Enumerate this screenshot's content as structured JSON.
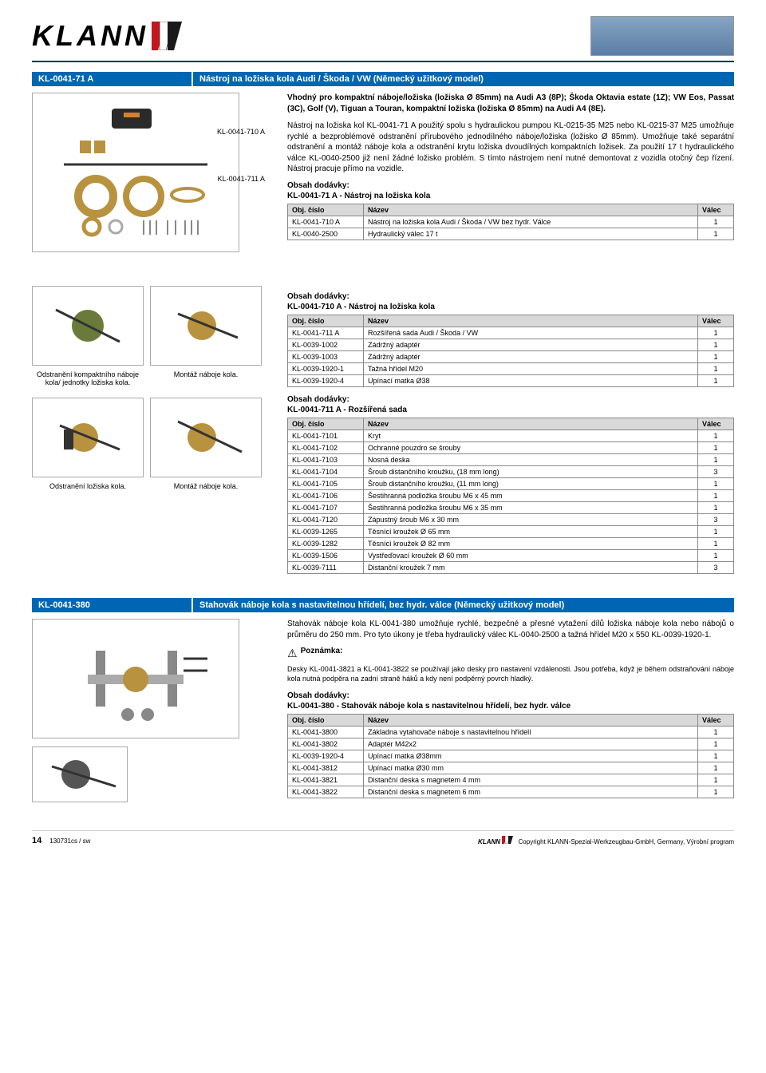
{
  "header": {
    "logo_text": "KLANN",
    "logo_colors": {
      "red": "#c4161c",
      "dark": "#1a1a1a"
    }
  },
  "section1": {
    "code": "KL-0041-71 A",
    "title": "Nástroj na ložiska kola Audi / Škoda / VW  (Německý užitkový model)",
    "ref1": "KL-0041-710 A",
    "ref2": "KL-0041-711 A",
    "intro_bold": "Vhodný pro kompaktní náboje/ložiska (ložiska Ø 85mm) na Audi A3 (8P); Škoda Oktavia estate (1Z); VW Eos, Passat (3C), Golf (V), Tiguan a Touran, kompaktní ložiska (ložiska Ø 85mm) na Audi A4 (8E).",
    "desc": "Nástroj na ložiska kol KL-0041-71 A použitý spolu s hydraulickou pumpou KL-0215-35 M25 nebo KL-0215-37 M25 umožňuje rychlé a bezproblémové odstranění přírubového jednodílného náboje/ložiska (ložisko Ø 85mm). Umožňuje také separátní odstranění a montáž náboje kola a odstranění krytu ložiska dvoudílných kompaktních ložisek. Za použití 17 t hydraulického válce KL-0040-2500 již není žádné ložisko problém. S tímto nástrojem není nutné demontovat z vozidla otočný čep řízení. Nástroj pracuje přímo na vozidle.",
    "table1_title": "Obsah dodávky:",
    "table1_subtitle": "KL-0041-71 A - Nástroj na ložiska kola",
    "table1": {
      "columns": [
        "Obj. číslo",
        "Název",
        "Válec"
      ],
      "rows": [
        [
          "KL-0041-710 A",
          "Nástroj na ložiska kola Audi / Škoda / VW bez hydr. Válce",
          "1"
        ],
        [
          "KL-0040-2500",
          "Hydraulický válec 17 t",
          "1"
        ]
      ]
    },
    "table2_title": "Obsah dodávky:",
    "table2_subtitle": "KL-0041-710 A - Nástroj na ložiska kola",
    "table2": {
      "columns": [
        "Obj. číslo",
        "Název",
        "Válec"
      ],
      "rows": [
        [
          "KL-0041-711 A",
          "Rozšířená sada Audi / Škoda / VW",
          "1"
        ],
        [
          "KL-0039-1002",
          "Zádržný adaptér",
          "1"
        ],
        [
          "KL-0039-1003",
          "Zádržný adaptér",
          "1"
        ],
        [
          "KL-0039-1920-1",
          "Tažná hřídel M20",
          "1"
        ],
        [
          "KL-0039-1920-4",
          "Upínací matka Ø38",
          "1"
        ]
      ]
    },
    "table3_title": "Obsah dodávky:",
    "table3_subtitle": "KL-0041-711 A - Rozšířená sada",
    "table3": {
      "columns": [
        "Obj. číslo",
        "Název",
        "Válec"
      ],
      "rows": [
        [
          "KL-0041-7101",
          "Kryt",
          "1"
        ],
        [
          "KL-0041-7102",
          "Ochranné pouzdro se šrouby",
          "1"
        ],
        [
          "KL-0041-7103",
          "Nosná deska",
          "1"
        ],
        [
          "KL-0041-7104",
          "Šroub distančního kroužku, (18 mm long)",
          "3"
        ],
        [
          "KL-0041-7105",
          "Šroub distančního kroužku, (11 mm long)",
          "1"
        ],
        [
          "KL-0041-7106",
          "Šestihranná podložka šroubu M6 x 45 mm",
          "1"
        ],
        [
          "KL-0041-7107",
          "Šestihranná podložka šroubu M6 x 35 mm",
          "1"
        ],
        [
          "KL-0041-7120",
          "Zápustný šroub M6 x 30 mm",
          "3"
        ],
        [
          "KL-0039-1265",
          "Těsnící kroužek Ø 65 mm",
          "1"
        ],
        [
          "KL-0039-1282",
          "Těsnící kroužek Ø 82 mm",
          "1"
        ],
        [
          "KL-0039-1506",
          "Vystřeďovací kroužek Ø 60 mm",
          "1"
        ],
        [
          "KL-0039-7111",
          "Distanční kroužek 7 mm",
          "3"
        ]
      ]
    },
    "caption1": "Odstranění kompaktního náboje kola/ jednotky ložiska kola.",
    "caption2": "Montáž náboje kola.",
    "caption3": "Odstranění ložiska kola.",
    "caption4": "Montáž náboje kola."
  },
  "section2": {
    "code": "KL-0041-380",
    "title": "Stahovák náboje kola s nastavitelnou hřídelí, bez hydr. válce (Německý užitkový model)",
    "desc": "Stahovák náboje kola KL-0041-380 umožňuje rychlé, bezpečné a přesné vytažení dílů ložiska náboje kola nebo nábojů o průměru do 250 mm. Pro tyto úkony je třeba hydraulický válec KL-0040-2500 a tažná hřídel M20 x 550 KL-0039-1920-1.",
    "note_label": "Poznámka:",
    "note_text": "Desky KL-0041-3821 a KL-0041-3822 se používají jako desky pro nastavení vzdálenosti. Jsou potřeba, když je během odstraňování náboje kola nutná podpěra na zadní straně háků a kdy není podpěrný povrch hladký.",
    "table_title": "Obsah dodávky:",
    "table_subtitle": "KL-0041-380 - Stahovák náboje kola s nastavitelnou hřídelí, bez hydr. válce",
    "table": {
      "columns": [
        "Obj. číslo",
        "Název",
        "Válec"
      ],
      "rows": [
        [
          "KL-0041-3800",
          "Základna vytahovače náboje s nastavitelnou hřídelí",
          "1"
        ],
        [
          "KL-0041-3802",
          "Adaptér M42x2",
          "1"
        ],
        [
          "KL-0039-1920-4",
          "Upínací matka Ø38mm",
          "1"
        ],
        [
          "KL-0041-3812",
          "Upínací matka Ø30 mm",
          "1"
        ],
        [
          "KL-0041-3821",
          "Distanční deska s magnetem 4 mm",
          "1"
        ],
        [
          "KL-0041-3822",
          "Distanční deska s magnetem 6 mm",
          "1"
        ]
      ]
    }
  },
  "footer": {
    "page": "14",
    "doc": "130731cs / sw",
    "copyright": "Copyright KLANN-Spezial-Werkzeugbau-GmbH, Germany, Výrobní program",
    "brand": "KLANN"
  },
  "colors": {
    "header_blue": "#0066b3",
    "table_header_bg": "#d9d9d9",
    "border": "#888888"
  }
}
